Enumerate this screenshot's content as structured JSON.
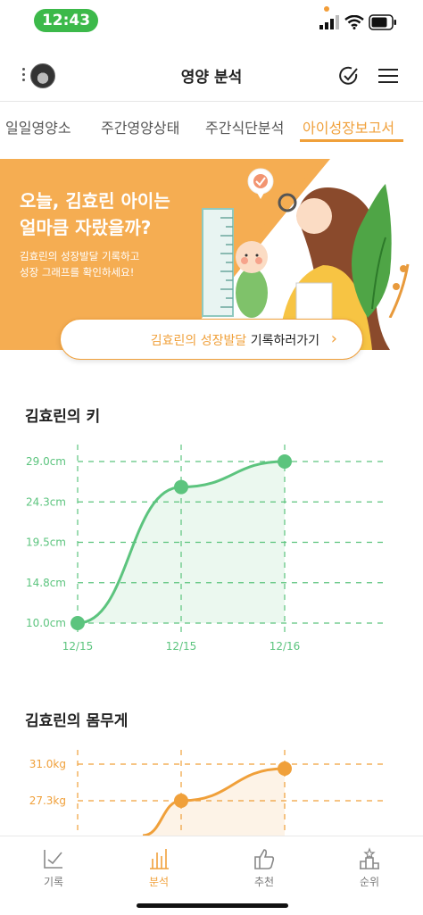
{
  "status": {
    "time": "12:43"
  },
  "header": {
    "title": "영양 분석"
  },
  "tabs": [
    {
      "label": "일일영양소",
      "active": false
    },
    {
      "label": "주간영양상태",
      "active": false
    },
    {
      "label": "주간식단분석",
      "active": false
    },
    {
      "label": "아이성장보고서",
      "active": true
    }
  ],
  "banner": {
    "title_line1": "오늘, 김효린 아이는",
    "title_line2": "얼마큼 자랐을까?",
    "sub_line1": "김효린의 성장발달 기록하고",
    "sub_line2": "성장 그래프를 확인하세요!",
    "button_name": "김효린의 성장발달",
    "button_action": " 기록하러가기"
  },
  "colors": {
    "accent": "#f0a03a",
    "banner_bg": "#f5ad52",
    "height_chart": "#5cc47e",
    "weight_chart": "#f0a03a"
  },
  "charts": {
    "height_title": "김효린의 키",
    "weight_title": "김효린의 몸무게"
  },
  "chart_data": [
    {
      "type": "area",
      "title": "김효린의 키",
      "x": [
        "12/15",
        "12/15",
        "12/16"
      ],
      "y_ticks": [
        "29.0cm",
        "24.3cm",
        "19.5cm",
        "14.8cm",
        "10.0cm"
      ],
      "ylim": [
        10.0,
        29.0
      ],
      "values": [
        10.0,
        26.0,
        29.0
      ],
      "grid": true
    },
    {
      "type": "area",
      "title": "김효린의 몸무게",
      "y_ticks": [
        "31.0kg",
        "27.3kg"
      ],
      "values": [
        27.3,
        31.0
      ],
      "grid": true
    }
  ],
  "bottom_nav": [
    {
      "label": "기록",
      "icon": "check-chart-icon",
      "active": false
    },
    {
      "label": "분석",
      "icon": "bar-chart-icon",
      "active": true
    },
    {
      "label": "추천",
      "icon": "thumbs-up-icon",
      "active": false
    },
    {
      "label": "순위",
      "icon": "podium-icon",
      "active": false
    }
  ]
}
